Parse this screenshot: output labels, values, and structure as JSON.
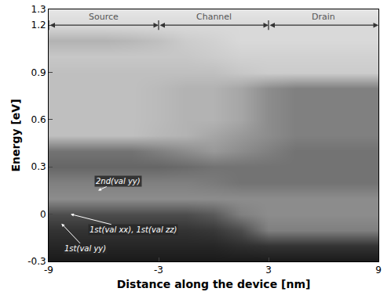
{
  "chart_data": {
    "type": "heatmap",
    "xlabel": "Distance along the device [nm]",
    "ylabel": "Energy [eV]",
    "x": [
      -9,
      -7.5,
      -6,
      -4.5,
      -3,
      -1.5,
      0,
      1.5,
      3,
      4.5,
      6,
      7.5,
      9
    ],
    "y": [
      -0.3,
      -0.2,
      -0.1,
      0.0,
      0.1,
      0.2,
      0.3,
      0.4,
      0.5,
      0.6,
      0.7,
      0.8,
      0.9,
      1.0,
      1.1,
      1.2,
      1.3
    ],
    "z": [
      [
        0.9,
        0.9,
        0.9,
        0.9,
        0.9,
        0.9,
        0.9,
        0.9,
        0.9,
        0.9,
        0.9,
        0.9,
        0.9
      ],
      [
        0.85,
        0.85,
        0.85,
        0.85,
        0.85,
        0.85,
        0.85,
        0.82,
        0.8,
        0.8,
        0.8,
        0.8,
        0.8
      ],
      [
        0.8,
        0.8,
        0.8,
        0.8,
        0.8,
        0.8,
        0.78,
        0.7,
        0.5,
        0.5,
        0.5,
        0.5,
        0.5
      ],
      [
        0.7,
        0.7,
        0.7,
        0.7,
        0.7,
        0.7,
        0.65,
        0.5,
        0.45,
        0.45,
        0.45,
        0.45,
        0.45
      ],
      [
        0.45,
        0.45,
        0.45,
        0.45,
        0.45,
        0.45,
        0.45,
        0.45,
        0.45,
        0.45,
        0.45,
        0.45,
        0.45
      ],
      [
        0.5,
        0.5,
        0.5,
        0.5,
        0.5,
        0.5,
        0.52,
        0.55,
        0.55,
        0.55,
        0.55,
        0.55,
        0.55
      ],
      [
        0.6,
        0.6,
        0.6,
        0.6,
        0.6,
        0.58,
        0.55,
        0.55,
        0.55,
        0.55,
        0.55,
        0.55,
        0.55
      ],
      [
        0.55,
        0.55,
        0.55,
        0.55,
        0.5,
        0.45,
        0.4,
        0.45,
        0.5,
        0.55,
        0.55,
        0.55,
        0.55
      ],
      [
        0.25,
        0.25,
        0.25,
        0.25,
        0.28,
        0.3,
        0.35,
        0.4,
        0.45,
        0.5,
        0.5,
        0.5,
        0.5
      ],
      [
        0.25,
        0.25,
        0.25,
        0.25,
        0.27,
        0.3,
        0.3,
        0.35,
        0.45,
        0.5,
        0.5,
        0.5,
        0.5
      ],
      [
        0.25,
        0.25,
        0.25,
        0.25,
        0.27,
        0.3,
        0.3,
        0.35,
        0.45,
        0.5,
        0.5,
        0.5,
        0.5
      ],
      [
        0.25,
        0.25,
        0.25,
        0.25,
        0.27,
        0.3,
        0.3,
        0.35,
        0.45,
        0.5,
        0.5,
        0.5,
        0.5
      ],
      [
        0.25,
        0.25,
        0.25,
        0.25,
        0.25,
        0.25,
        0.25,
        0.22,
        0.2,
        0.2,
        0.2,
        0.2,
        0.2
      ],
      [
        0.22,
        0.22,
        0.22,
        0.22,
        0.22,
        0.22,
        0.2,
        0.18,
        0.18,
        0.18,
        0.18,
        0.18,
        0.18
      ],
      [
        0.3,
        0.3,
        0.3,
        0.28,
        0.25,
        0.2,
        0.18,
        0.15,
        0.15,
        0.15,
        0.15,
        0.15,
        0.15
      ],
      [
        0.15,
        0.15,
        0.15,
        0.15,
        0.15,
        0.15,
        0.15,
        0.15,
        0.15,
        0.15,
        0.15,
        0.15,
        0.15
      ],
      [
        0.1,
        0.1,
        0.1,
        0.1,
        0.1,
        0.1,
        0.1,
        0.1,
        0.1,
        0.1,
        0.1,
        0.1,
        0.1
      ]
    ],
    "zlim": [
      0,
      1
    ],
    "xlim": [
      -9,
      9
    ],
    "xticks": [
      -9,
      -3,
      3,
      9
    ],
    "ylim": [
      -0.3,
      1.3
    ],
    "yticks": [
      -0.3,
      0,
      0.3,
      0.6,
      0.9,
      1.2,
      1.3
    ],
    "regions": [
      {
        "label": "Source",
        "from": -9,
        "to": -3,
        "y": 1.2
      },
      {
        "label": "Channel",
        "from": -3,
        "to": 3,
        "y": 1.2
      },
      {
        "label": "Drain",
        "from": 3,
        "to": 9,
        "y": 1.2
      }
    ],
    "annotations": [
      {
        "text": "2nd(val yy)",
        "x": -5.2,
        "y": 0.21,
        "point": [
          -6.3,
          0.15
        ]
      },
      {
        "text": "1st(val xx), 1st(val zz)",
        "x": -4.4,
        "y": -0.1,
        "point": [
          -7.8,
          0.0
        ]
      },
      {
        "text": "1st(val yy)",
        "x": -7.0,
        "y": -0.22,
        "point": [
          -8.3,
          -0.06
        ]
      }
    ]
  }
}
